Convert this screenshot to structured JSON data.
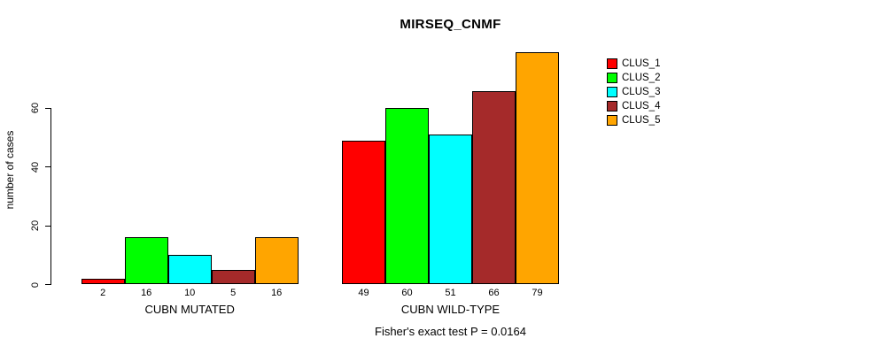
{
  "chart_data": {
    "type": "bar",
    "title": "MIRSEQ_CNMF",
    "ylabel": "number of cases",
    "xlabel": "",
    "ylim": [
      0,
      79
    ],
    "yticks": [
      0,
      20,
      40,
      60
    ],
    "grid": false,
    "legend_position": "right",
    "background_color": "#FFFFFF",
    "bar_border_color": "#000000",
    "series": [
      {
        "name": "CLUS_1",
        "color": "#FF0000"
      },
      {
        "name": "CLUS_2",
        "color": "#00FF00"
      },
      {
        "name": "CLUS_3",
        "color": "#00FFFF"
      },
      {
        "name": "CLUS_4",
        "color": "#A52A2A"
      },
      {
        "name": "CLUS_5",
        "color": "#FFA500"
      }
    ],
    "groups": [
      {
        "label": "CUBN MUTATED",
        "values": [
          2,
          16,
          10,
          5,
          16
        ]
      },
      {
        "label": "CUBN WILD-TYPE",
        "values": [
          49,
          60,
          51,
          66,
          79
        ]
      }
    ],
    "bar_value_labels_shown": true,
    "annotation": "Fisher's exact test P = 0.0164"
  }
}
